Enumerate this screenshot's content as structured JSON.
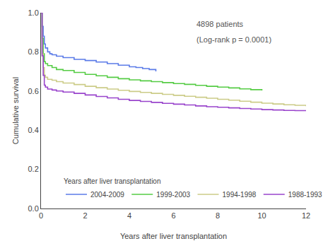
{
  "chart_data": {
    "type": "step",
    "xlabel": "Years after liver transplantation",
    "ylabel": "Cumulative survival",
    "xlim": [
      0,
      12
    ],
    "ylim": [
      0.0,
      1.0
    ],
    "xticks": [
      0,
      2,
      4,
      6,
      8,
      10,
      12
    ],
    "yticks": [
      {
        "value": 0.0,
        "label": "0.0"
      },
      0.2,
      0.4,
      0.6,
      0.8,
      {
        "value": 1.0,
        "label": "1.0"
      }
    ],
    "grid": false,
    "legend": "lower left",
    "legend_title": "Years after liver transplantation",
    "annotations": [
      "4898 patients",
      "(Log-rank p = 0.0001)"
    ],
    "series": [
      {
        "name": "2004-2009",
        "color": "#5B7BE8",
        "x": [
          0,
          0.05,
          0.1,
          0.15,
          0.2,
          0.3,
          0.4,
          0.5,
          0.7,
          1.0,
          1.5,
          2.0,
          2.5,
          3.0,
          3.5,
          4.0,
          4.3,
          4.6,
          4.9,
          5.2
        ],
        "values": [
          1.0,
          0.93,
          0.88,
          0.84,
          0.82,
          0.8,
          0.79,
          0.785,
          0.778,
          0.771,
          0.762,
          0.756,
          0.748,
          0.74,
          0.732,
          0.724,
          0.72,
          0.715,
          0.71,
          0.7
        ]
      },
      {
        "name": "1999-2003",
        "color": "#55CC44",
        "x": [
          0,
          0.05,
          0.1,
          0.15,
          0.2,
          0.3,
          0.5,
          0.7,
          1.0,
          1.5,
          2.0,
          2.5,
          3.0,
          3.5,
          4.0,
          4.5,
          5.0,
          5.5,
          6.0,
          6.5,
          7.0,
          7.5,
          8.0,
          8.5,
          9.0,
          9.5,
          10.0
        ],
        "values": [
          1.0,
          0.87,
          0.79,
          0.75,
          0.74,
          0.73,
          0.72,
          0.71,
          0.705,
          0.695,
          0.685,
          0.678,
          0.67,
          0.663,
          0.657,
          0.652,
          0.648,
          0.643,
          0.638,
          0.634,
          0.629,
          0.624,
          0.62,
          0.616,
          0.611,
          0.607,
          0.603
        ]
      },
      {
        "name": "1994-1998",
        "color": "#CCCC88",
        "x": [
          0,
          0.05,
          0.1,
          0.15,
          0.2,
          0.3,
          0.5,
          0.7,
          1.0,
          1.5,
          2.0,
          2.5,
          3.0,
          3.5,
          4.0,
          4.5,
          5.0,
          5.5,
          6.0,
          6.5,
          7.0,
          7.5,
          8.0,
          8.5,
          9.0,
          9.5,
          10.0,
          10.5,
          11.0,
          11.5,
          12.0
        ],
        "values": [
          1.0,
          0.79,
          0.72,
          0.68,
          0.67,
          0.66,
          0.655,
          0.648,
          0.641,
          0.633,
          0.624,
          0.617,
          0.61,
          0.604,
          0.598,
          0.593,
          0.588,
          0.583,
          0.578,
          0.573,
          0.568,
          0.563,
          0.558,
          0.553,
          0.548,
          0.543,
          0.538,
          0.534,
          0.53,
          0.527,
          0.523
        ]
      },
      {
        "name": "1988-1993",
        "color": "#9944CC",
        "x": [
          0,
          0.05,
          0.1,
          0.15,
          0.2,
          0.3,
          0.5,
          0.7,
          1.0,
          1.5,
          2.0,
          2.5,
          3.0,
          3.5,
          4.0,
          4.5,
          5.0,
          5.5,
          6.0,
          6.5,
          7.0,
          7.5,
          8.0,
          8.5,
          9.0,
          9.5,
          10.0,
          10.5,
          11.0,
          11.5,
          12.0
        ],
        "values": [
          1.0,
          0.78,
          0.68,
          0.63,
          0.62,
          0.61,
          0.605,
          0.6,
          0.595,
          0.588,
          0.58,
          0.572,
          0.565,
          0.558,
          0.552,
          0.547,
          0.542,
          0.537,
          0.533,
          0.529,
          0.524,
          0.52,
          0.517,
          0.514,
          0.511,
          0.508,
          0.505,
          0.503,
          0.501,
          0.5,
          0.498
        ]
      }
    ]
  }
}
